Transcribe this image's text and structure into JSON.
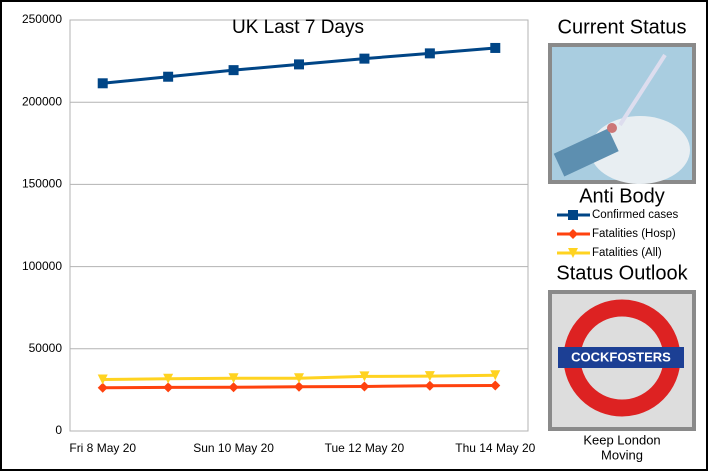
{
  "chart_data": {
    "type": "line",
    "title": "UK Last 7 Days",
    "categories": [
      "Fri 8 May 20",
      null,
      "Sun 10 May 20",
      null,
      "Tue 12 May 20",
      null,
      "Thu 14 May 20"
    ],
    "series": [
      {
        "name": "Confirmed cases",
        "color": "#004586",
        "marker": "square",
        "values": [
          211500,
          215500,
          219500,
          223000,
          226500,
          229700,
          233000
        ]
      },
      {
        "name": "Fatalities (Hosp)",
        "color": "#ff420e",
        "marker": "diamond",
        "values": [
          26300,
          26500,
          26600,
          26900,
          27100,
          27500,
          27700
        ]
      },
      {
        "name": "Fatalities (All)",
        "color": "#ffd320",
        "marker": "triangle",
        "values": [
          31300,
          31800,
          32100,
          32100,
          33200,
          33400,
          33900
        ]
      }
    ],
    "ylim": [
      0,
      250000
    ],
    "yticks": [
      0,
      50000,
      100000,
      150000,
      200000,
      250000
    ],
    "grid": true
  },
  "sidebar": {
    "status_heading": "Current Status",
    "status_caption": "Anti Body",
    "outlook_heading": "Status Outlook",
    "sign_text": "COCKFOSTERS",
    "outlook_caption": [
      "Keep London",
      "Moving"
    ]
  }
}
